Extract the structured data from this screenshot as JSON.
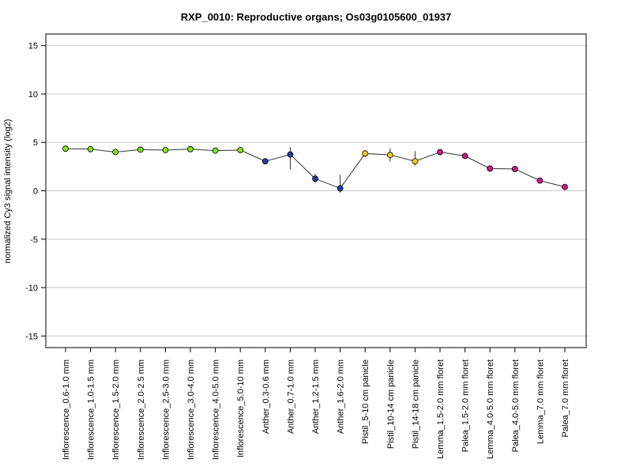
{
  "chart_data": {
    "type": "line",
    "title": "RXP_0010: Reproductive organs; Os03g0105600_01937",
    "ylabel": "normalized Cy3 signal intensity (log2)",
    "xlabel": "",
    "ylim": [
      -16.2,
      16.2
    ],
    "yticks": [
      -15,
      -10,
      -5,
      0,
      5,
      10,
      15
    ],
    "ytick_labels": [
      "-15",
      "-10",
      "-5",
      "0",
      "5",
      "10",
      "15"
    ],
    "grid": true,
    "legend": "none",
    "categories": [
      "Inflorescence_0.6-1.0 mm",
      "Inflorescence_1.0-1.5 mm",
      "Inflorescence_1.5-2.0 mm",
      "Inflorescence_2.0-2.5 mm",
      "Inflorescence_2.5-3.0 mm",
      "Inflorescence_3.0-4.0 mm",
      "Inflorescence_4.0-5.0 mm",
      "Inflorescence_5.0-10 mm",
      "Anther_0.3-0.6 mm",
      "Anther_0.7-1.0 mm",
      "Anther_1.2-1.5 mm",
      "Anther_1.6-2.0 mm",
      "Pistil_5-10 cm panicle",
      "Pistil_10-14 cm panicle",
      "Pistil_14-18 cm panicle",
      "Lemma_1.5-2.0 mm floret",
      "Palea_1.5-2.0 mm floret",
      "Lemma_4.0-5.0 mm floret",
      "Palea_4.0-5.0 mm floret",
      "Lemma_7.0 mm floret",
      "Palea_7.0 mm floret"
    ],
    "values": [
      4.35,
      4.3,
      4.0,
      4.25,
      4.2,
      4.3,
      4.15,
      4.2,
      3.05,
      3.75,
      1.25,
      0.25,
      3.85,
      3.7,
      3.05,
      4.0,
      3.6,
      2.3,
      2.25,
      1.05,
      0.4
    ],
    "error_low": [
      4.2,
      4.2,
      3.85,
      4.1,
      4.05,
      4.15,
      4.0,
      4.05,
      2.8,
      2.2,
      0.8,
      -0.2,
      3.5,
      3.0,
      2.6,
      3.8,
      3.3,
      2.15,
      2.1,
      0.9,
      0.2
    ],
    "error_high": [
      4.5,
      4.45,
      4.15,
      4.4,
      4.35,
      4.45,
      4.3,
      4.35,
      3.3,
      4.5,
      1.75,
      1.65,
      4.2,
      4.4,
      4.1,
      4.2,
      3.9,
      2.45,
      2.4,
      1.2,
      0.6
    ],
    "point_colors": [
      "#7fe61a",
      "#7fe61a",
      "#7fe61a",
      "#7fe61a",
      "#7fe61a",
      "#7fe61a",
      "#7fe61a",
      "#7fe61a",
      "#1f3f9f",
      "#1f3f9f",
      "#1f3f9f",
      "#1f3f9f",
      "#f0d020",
      "#f0d020",
      "#f0d020",
      "#d0188c",
      "#d0188c",
      "#d0188c",
      "#d0188c",
      "#d0188c",
      "#d0188c"
    ]
  }
}
